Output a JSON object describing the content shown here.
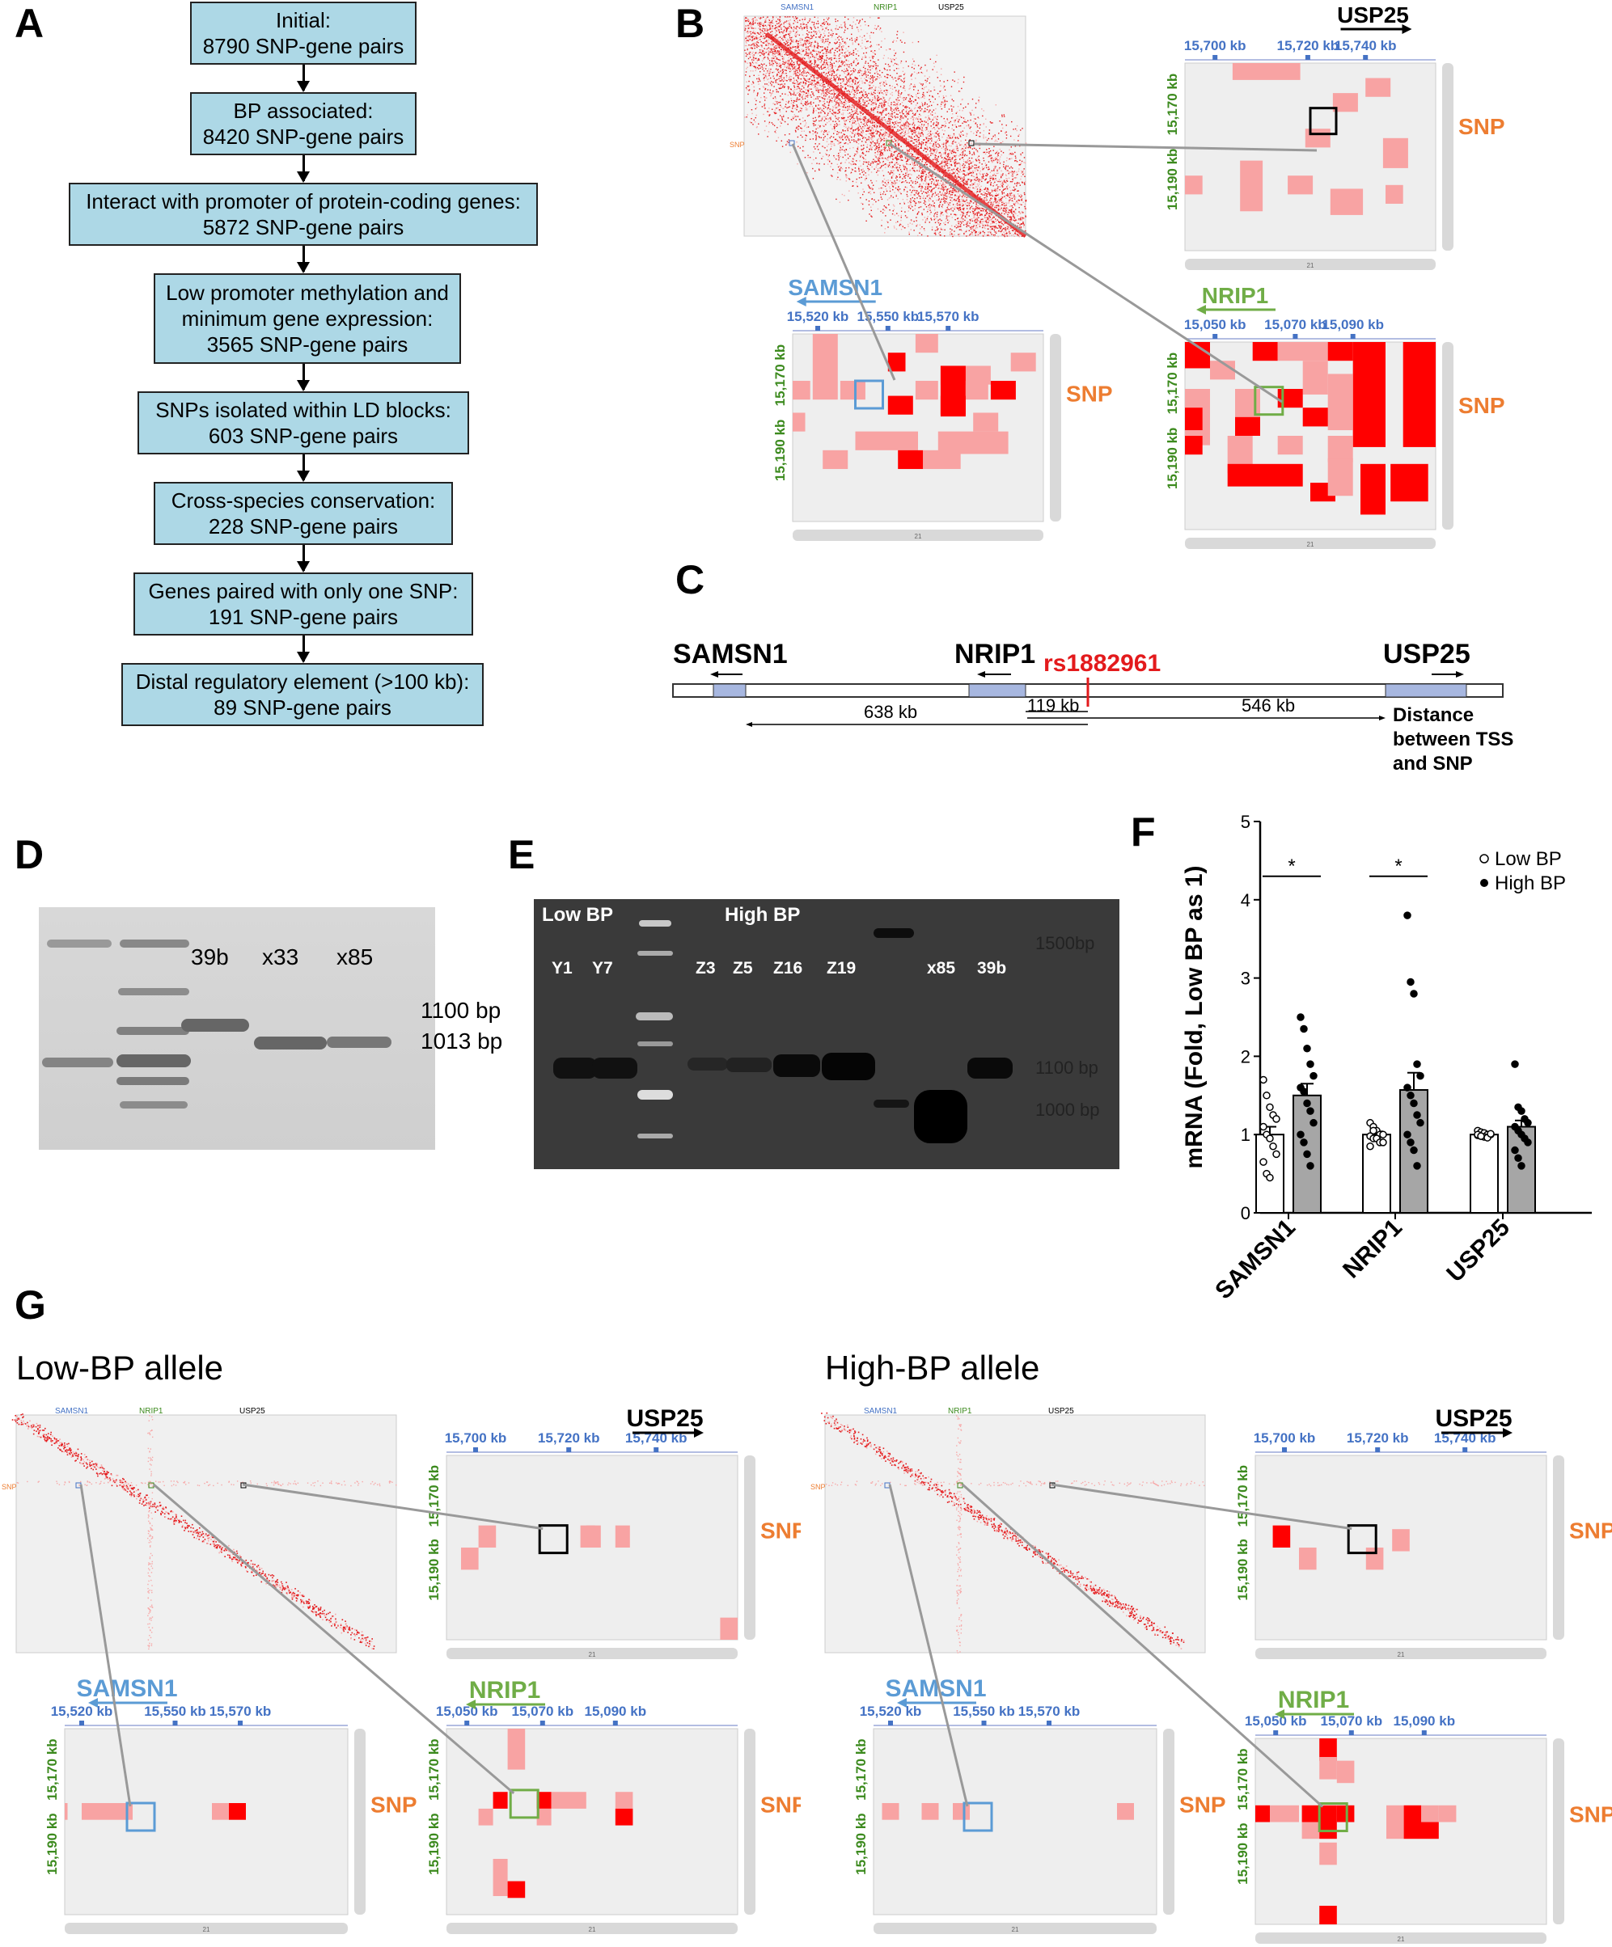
{
  "panels": {
    "A": "A",
    "B": "B",
    "C": "C",
    "D": "D",
    "E": "E",
    "F": "F",
    "G": "G"
  },
  "flowchart": [
    {
      "line1": "Initial:",
      "line2": "8790 SNP-gene pairs"
    },
    {
      "line1": "BP associated:",
      "line2": "8420 SNP-gene pairs"
    },
    {
      "line1": "Interact with promoter of protein-coding genes:",
      "line2": "5872 SNP-gene pairs"
    },
    {
      "line1": "Low promoter methylation and",
      "line2": "minimum gene expression:",
      "line3": "3565 SNP-gene pairs"
    },
    {
      "line1": "SNPs isolated within LD blocks:",
      "line2": "603 SNP-gene pairs"
    },
    {
      "line1": "Cross-species conservation:",
      "line2": "228 SNP-gene pairs"
    },
    {
      "line1": "Genes paired with only one SNP:",
      "line2": "191 SNP-gene pairs"
    },
    {
      "line1": "Distal regulatory element (>100 kb):",
      "line2": "89 SNP-gene pairs"
    }
  ],
  "hic": {
    "genes": {
      "samsn1": "SAMSN1",
      "nrip1": "NRIP1",
      "usp25": "USP25"
    },
    "snp": "SNP",
    "usp25_ticks": [
      "15,700 kb",
      "15,720 kb",
      "15,740 kb"
    ],
    "samsn1_ticks": [
      "15,520 kb",
      "15,550 kb",
      "15,570 kb"
    ],
    "nrip1_ticks": [
      "15,050 kb",
      "15,070 kb",
      "15,090 kb"
    ],
    "yticks": [
      "15,170 kb",
      "15,190 kb"
    ],
    "chrom": "21"
  },
  "locus": {
    "genes": {
      "samsn1": "SAMSN1",
      "nrip1": "NRIP1",
      "usp25": "USP25"
    },
    "snp": "rs1882961",
    "d1": "638 kb",
    "d2": "119 kb",
    "d3": "546 kb",
    "note1": "Distance",
    "note2": "between TSS",
    "note3": "and SNP"
  },
  "gelD": {
    "lanes": [
      "39b",
      "x33",
      "x85"
    ],
    "bands": [
      "1100 bp",
      "1013 bp"
    ]
  },
  "gelE": {
    "group1": "Low BP",
    "group2": "High BP",
    "lanes": [
      "Y1",
      "Y7",
      "Z3",
      "Z5",
      "Z16",
      "Z19",
      "x85",
      "39b"
    ],
    "markers": [
      "1500bp",
      "1100 bp",
      "1000 bp"
    ]
  },
  "chart_data": {
    "type": "bar",
    "categories": [
      "SAMSN1",
      "NRIP1",
      "USP25"
    ],
    "ylabel": "mRNA (Fold, Low BP as 1)",
    "ylim": [
      0,
      5
    ],
    "yticks": [
      "0",
      "1",
      "2",
      "3",
      "4",
      "5"
    ],
    "legend": [
      "Low BP",
      "High BP"
    ],
    "legend_placement": "top-right",
    "significance": [
      "*",
      "*",
      ""
    ],
    "series": [
      {
        "name": "Low BP",
        "values": [
          1.0,
          1.0,
          1.0
        ],
        "errors": [
          0.1,
          0.04,
          0.02
        ],
        "points": [
          [
            1.7,
            1.5,
            1.35,
            1.25,
            1.2,
            1.1,
            1.0,
            0.95,
            0.85,
            0.75,
            0.65,
            0.5,
            0.45
          ],
          [
            1.15,
            1.1,
            1.05,
            1.0,
            1.0,
            0.98,
            0.95,
            0.95,
            0.9,
            0.9,
            0.85,
            1.05
          ],
          [
            1.05,
            1.03,
            1.02,
            1.0,
            1.0,
            0.99,
            0.98,
            0.97,
            0.96,
            1.01,
            1.0,
            0.98
          ]
        ]
      },
      {
        "name": "High BP",
        "values": [
          1.5,
          1.57,
          1.1
        ],
        "errors": [
          0.15,
          0.22,
          0.08
        ],
        "points": [
          [
            2.5,
            2.35,
            2.1,
            1.9,
            1.75,
            1.6,
            1.55,
            1.4,
            1.3,
            1.15,
            1.0,
            0.9,
            0.75,
            0.6
          ],
          [
            3.8,
            2.95,
            2.8,
            1.9,
            1.75,
            1.6,
            1.5,
            1.4,
            1.25,
            1.15,
            1.0,
            0.9,
            0.8,
            0.6
          ],
          [
            1.9,
            1.35,
            1.3,
            1.2,
            1.15,
            1.1,
            1.05,
            1.0,
            0.95,
            0.9,
            0.8,
            0.7,
            0.6
          ]
        ]
      }
    ]
  },
  "panelG": {
    "low": "Low-BP allele",
    "high": "High-BP allele"
  }
}
